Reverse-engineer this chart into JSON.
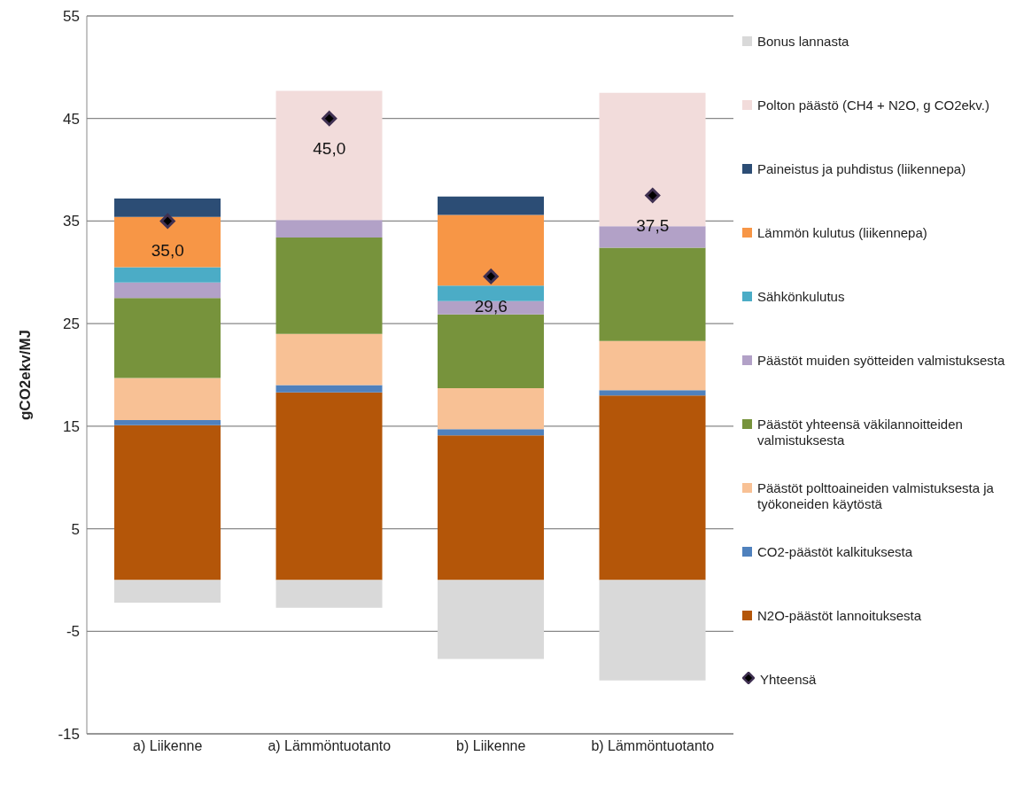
{
  "chart_data": {
    "type": "bar",
    "stacked": true,
    "ylabel": "gCO2ekv/MJ",
    "categories": [
      "a) Liikenne",
      "a) Lämmöntuotanto",
      "b) Liikenne",
      "b) Lämmöntuotanto"
    ],
    "ylim": [
      -15,
      55
    ],
    "yticks": [
      -15,
      -5,
      5,
      15,
      25,
      35,
      45,
      55
    ],
    "grid": "y",
    "legend": "right",
    "series": [
      {
        "name": "N2O-päästöt lannoituksesta",
        "color": "#b45609",
        "values": [
          15.1,
          18.3,
          14.1,
          18.0
        ]
      },
      {
        "name": "CO2-päästöt kalkituksesta",
        "color": "#4f81bd",
        "values": [
          0.5,
          0.7,
          0.6,
          0.5
        ]
      },
      {
        "name": "Päästöt polttoaineiden valmistuksesta ja työkoneiden käytöstä",
        "color": "#f8c195",
        "values": [
          4.1,
          5.0,
          4.0,
          4.8
        ]
      },
      {
        "name": "Päästöt yhteensä väkilannoitteiden valmistuksesta",
        "color": "#77933c",
        "values": [
          7.8,
          9.4,
          7.2,
          9.1
        ]
      },
      {
        "name": "Päästöt muiden syötteiden valmistuksesta",
        "color": "#b2a1c7",
        "values": [
          1.5,
          1.7,
          1.3,
          2.1
        ]
      },
      {
        "name": "Sähkönkulutus",
        "color": "#4bacc6",
        "values": [
          1.5,
          null,
          1.5,
          null
        ]
      },
      {
        "name": "Lämmön kulutus (liikennepa)",
        "color": "#f79646",
        "values": [
          4.9,
          null,
          6.9,
          null
        ]
      },
      {
        "name": "Paineistus ja puhdistus (liikennepa)",
        "color": "#2c4d75",
        "values": [
          1.8,
          null,
          1.8,
          null
        ]
      },
      {
        "name": "Polton päästö (CH4 + N2O, g CO2ekv.)",
        "color": "#f2dcdb",
        "values": [
          null,
          12.6,
          null,
          13.0
        ]
      },
      {
        "name": "Bonus lannasta",
        "color": "#d9d9d9",
        "values": [
          -2.2,
          -2.7,
          -7.7,
          -9.8
        ]
      },
      {
        "name": "Yhteensä",
        "type": "scatter",
        "marker": "diamond",
        "color": "#403152",
        "values": [
          35.0,
          45.0,
          29.6,
          37.5
        ],
        "value_labels": [
          "35,0",
          "45,0",
          "29,6",
          "37,5"
        ]
      }
    ]
  }
}
